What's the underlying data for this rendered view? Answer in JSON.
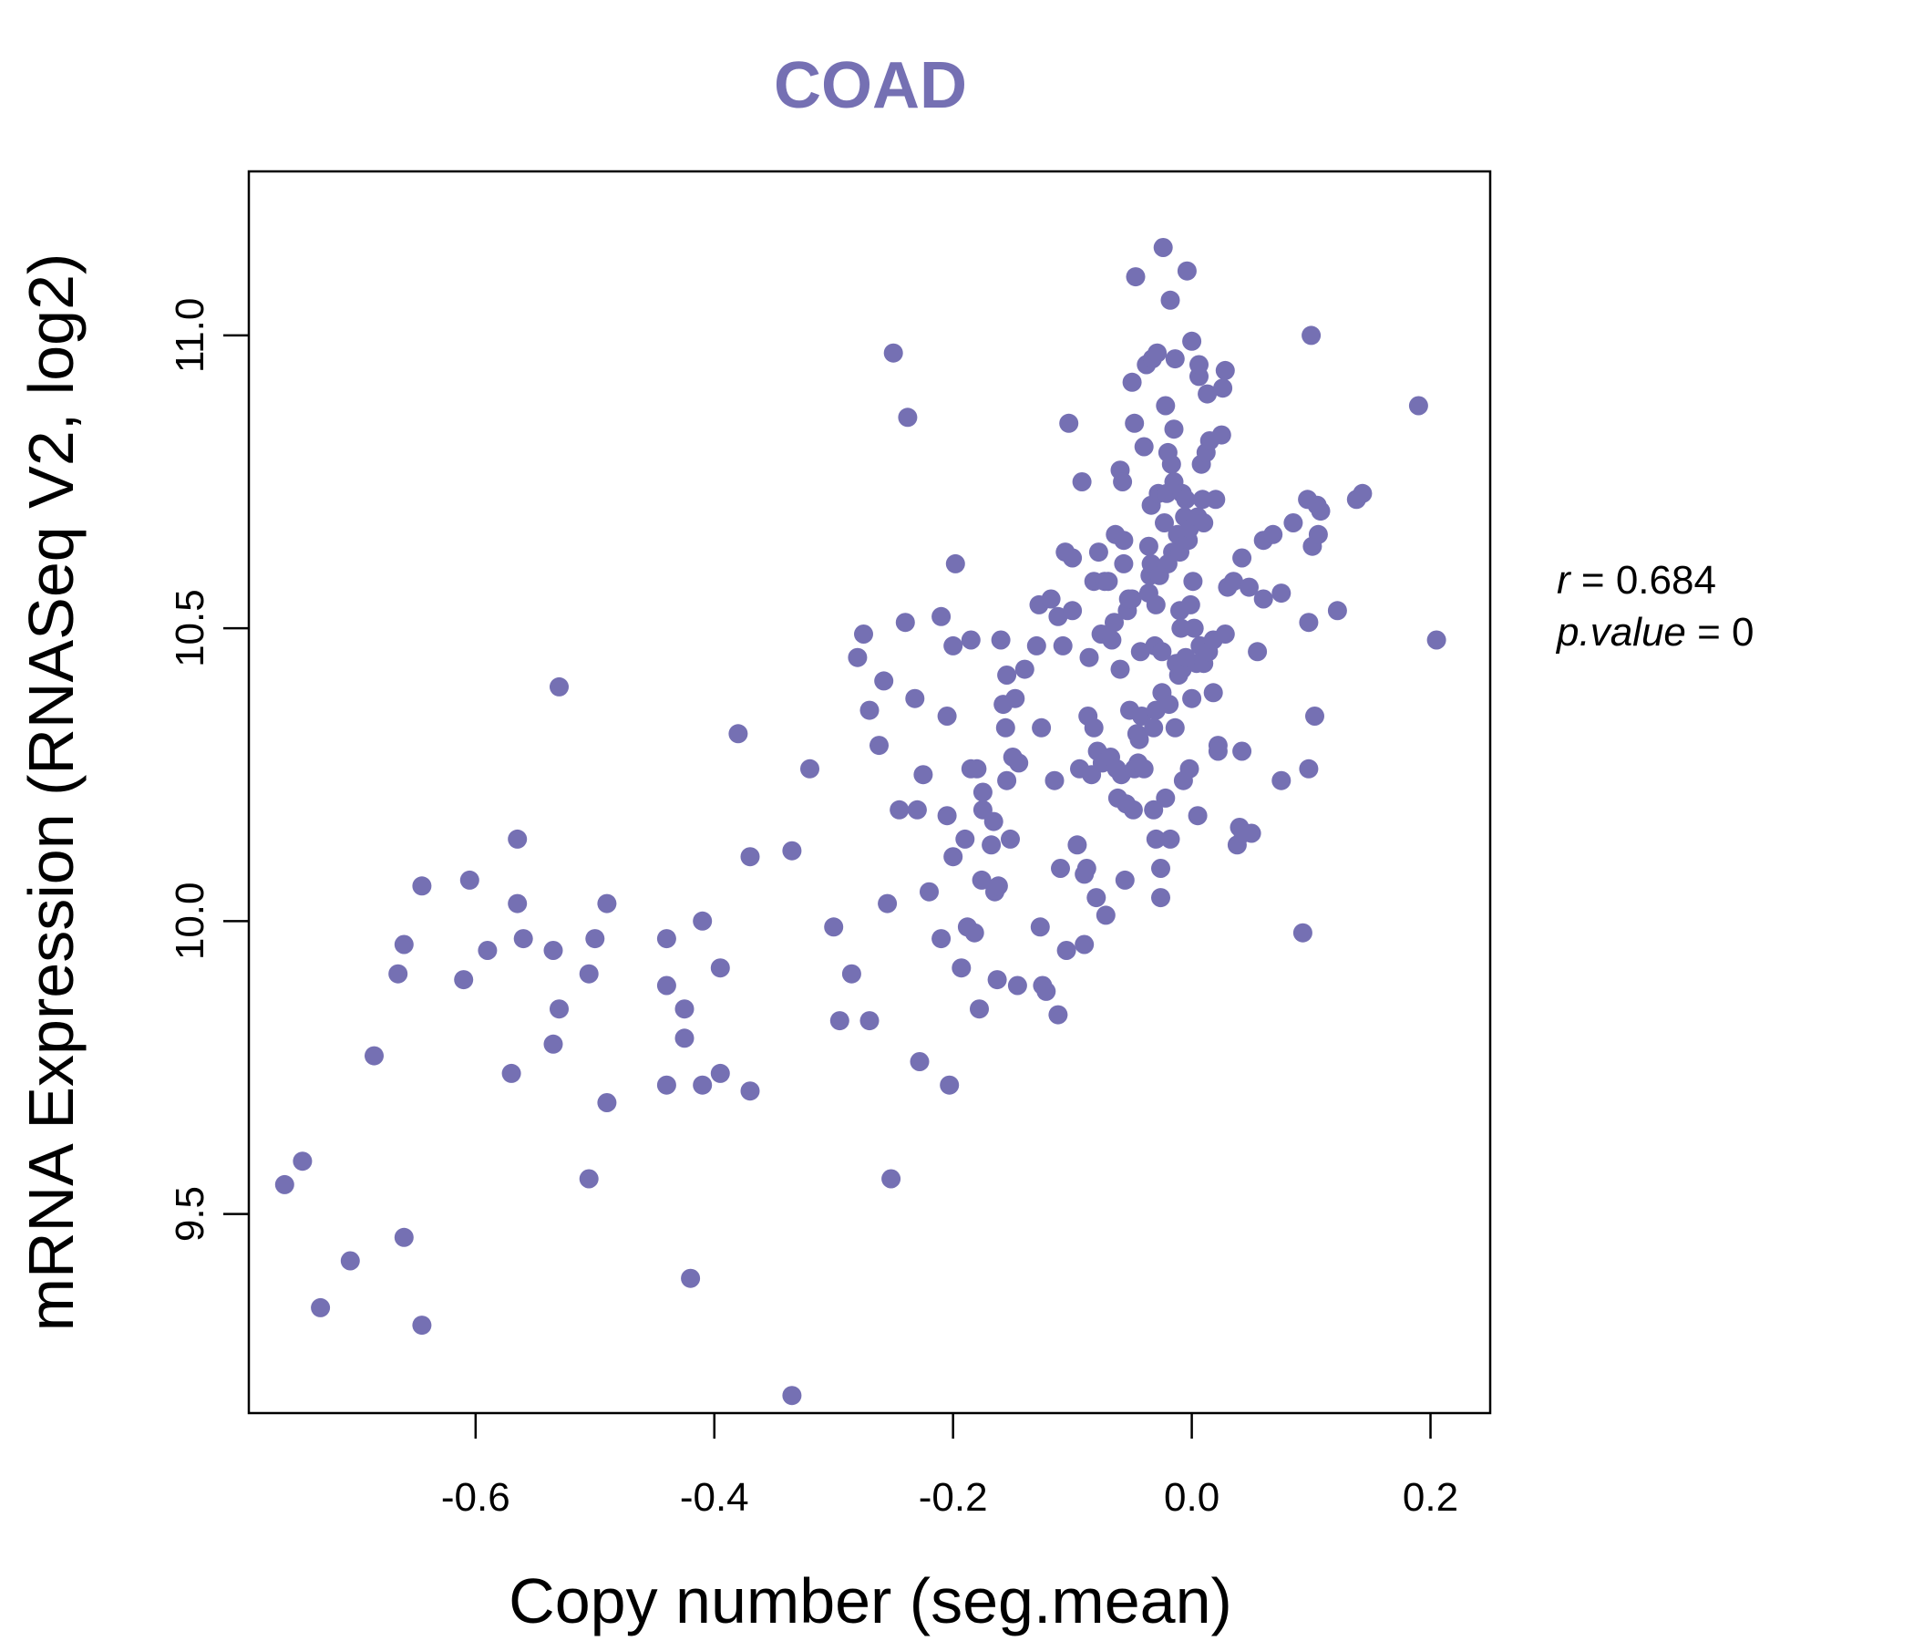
{
  "colors": {
    "accent": "#7570b3",
    "axis": "#000000"
  },
  "chart_data": {
    "type": "scatter",
    "title": "COAD",
    "xlabel": "Copy number (seg.mean)",
    "ylabel": "mRNA Expression (RNASeq V2, log2)",
    "xlim": [
      -0.79,
      0.25
    ],
    "ylim": [
      9.16,
      11.28
    ],
    "x_ticks": [
      -0.6,
      -0.4,
      -0.2,
      0.0,
      0.2
    ],
    "x_tick_labels": [
      "-0.6",
      "-0.4",
      "-0.2",
      "0.0",
      "0.2"
    ],
    "y_ticks": [
      9.5,
      10.0,
      10.5,
      11.0
    ],
    "y_tick_labels": [
      "9.5",
      "10.0",
      "10.5",
      "11.0"
    ],
    "grid": false,
    "annotation": {
      "r_symbol": "r",
      "r_value": "0.684",
      "p_symbol": "p.value",
      "p_value": "0"
    },
    "points": [
      [
        -0.76,
        9.55
      ],
      [
        -0.745,
        9.59
      ],
      [
        -0.73,
        9.34
      ],
      [
        -0.705,
        9.42
      ],
      [
        -0.685,
        9.77
      ],
      [
        -0.665,
        9.91
      ],
      [
        -0.66,
        9.96
      ],
      [
        -0.66,
        9.46
      ],
      [
        -0.645,
        10.06
      ],
      [
        -0.645,
        9.31
      ],
      [
        -0.61,
        9.9
      ],
      [
        -0.605,
        10.07
      ],
      [
        -0.59,
        9.95
      ],
      [
        -0.57,
        9.74
      ],
      [
        -0.565,
        10.03
      ],
      [
        -0.565,
        10.14
      ],
      [
        -0.56,
        9.97
      ],
      [
        -0.535,
        9.95
      ],
      [
        -0.535,
        9.79
      ],
      [
        -0.53,
        9.85
      ],
      [
        -0.53,
        10.4
      ],
      [
        -0.505,
        9.91
      ],
      [
        -0.505,
        9.56
      ],
      [
        -0.5,
        9.97
      ],
      [
        -0.49,
        10.03
      ],
      [
        -0.49,
        9.69
      ],
      [
        -0.44,
        9.89
      ],
      [
        -0.44,
        9.97
      ],
      [
        -0.44,
        9.72
      ],
      [
        -0.425,
        9.85
      ],
      [
        -0.425,
        9.8
      ],
      [
        -0.42,
        9.39
      ],
      [
        -0.41,
        10.0
      ],
      [
        -0.41,
        9.72
      ],
      [
        -0.395,
        9.92
      ],
      [
        -0.395,
        9.74
      ],
      [
        -0.38,
        10.32
      ],
      [
        -0.37,
        10.11
      ],
      [
        -0.37,
        9.71
      ],
      [
        -0.335,
        10.12
      ],
      [
        -0.335,
        9.19
      ],
      [
        -0.32,
        10.26
      ],
      [
        -0.3,
        9.99
      ],
      [
        -0.295,
        9.83
      ],
      [
        -0.285,
        9.91
      ],
      [
        -0.28,
        10.45
      ],
      [
        -0.275,
        10.49
      ],
      [
        -0.27,
        10.36
      ],
      [
        -0.27,
        9.83
      ],
      [
        -0.262,
        10.3
      ],
      [
        -0.258,
        10.41
      ],
      [
        -0.255,
        10.03
      ],
      [
        -0.252,
        9.56
      ],
      [
        -0.25,
        10.97
      ],
      [
        -0.245,
        10.19
      ],
      [
        -0.24,
        10.51
      ],
      [
        -0.238,
        10.86
      ],
      [
        -0.232,
        10.38
      ],
      [
        -0.23,
        10.19
      ],
      [
        -0.228,
        9.76
      ],
      [
        -0.225,
        10.25
      ],
      [
        -0.22,
        10.05
      ],
      [
        -0.21,
        9.97
      ],
      [
        -0.21,
        10.52
      ],
      [
        -0.205,
        10.18
      ],
      [
        -0.205,
        10.35
      ],
      [
        -0.203,
        9.72
      ],
      [
        -0.2,
        10.47
      ],
      [
        -0.2,
        10.11
      ],
      [
        -0.198,
        10.61
      ],
      [
        -0.193,
        9.92
      ],
      [
        -0.19,
        10.14
      ],
      [
        -0.188,
        9.99
      ],
      [
        -0.185,
        10.48
      ],
      [
        -0.185,
        10.26
      ],
      [
        -0.182,
        9.98
      ],
      [
        -0.18,
        10.26
      ],
      [
        -0.178,
        9.85
      ],
      [
        -0.176,
        10.07
      ],
      [
        -0.175,
        10.19
      ],
      [
        -0.175,
        10.22
      ],
      [
        -0.168,
        10.13
      ],
      [
        -0.166,
        10.17
      ],
      [
        -0.165,
        10.05
      ],
      [
        -0.163,
        9.9
      ],
      [
        -0.162,
        10.06
      ],
      [
        -0.16,
        10.48
      ],
      [
        -0.158,
        10.37
      ],
      [
        -0.156,
        10.33
      ],
      [
        -0.155,
        10.24
      ],
      [
        -0.155,
        10.42
      ],
      [
        -0.152,
        10.14
      ],
      [
        -0.15,
        10.28
      ],
      [
        -0.148,
        10.38
      ],
      [
        -0.146,
        9.89
      ],
      [
        -0.145,
        10.27
      ],
      [
        -0.14,
        10.43
      ],
      [
        -0.13,
        10.47
      ],
      [
        -0.128,
        10.54
      ],
      [
        -0.127,
        9.99
      ],
      [
        -0.126,
        10.33
      ],
      [
        -0.125,
        9.89
      ],
      [
        -0.122,
        9.88
      ],
      [
        -0.118,
        10.55
      ],
      [
        -0.115,
        10.24
      ],
      [
        -0.112,
        10.52
      ],
      [
        -0.112,
        9.84
      ],
      [
        -0.11,
        10.09
      ],
      [
        -0.108,
        10.47
      ],
      [
        -0.106,
        10.63
      ],
      [
        -0.105,
        9.95
      ],
      [
        -0.103,
        10.85
      ],
      [
        -0.1,
        10.62
      ],
      [
        -0.1,
        10.53
      ],
      [
        -0.096,
        10.13
      ],
      [
        -0.094,
        10.26
      ],
      [
        -0.092,
        10.75
      ],
      [
        -0.09,
        10.08
      ],
      [
        -0.09,
        9.96
      ],
      [
        -0.088,
        10.09
      ],
      [
        -0.087,
        10.35
      ],
      [
        -0.086,
        10.45
      ],
      [
        -0.084,
        10.25
      ],
      [
        -0.082,
        10.58
      ],
      [
        -0.082,
        10.33
      ],
      [
        -0.08,
        10.04
      ],
      [
        -0.079,
        10.29
      ],
      [
        -0.078,
        10.63
      ],
      [
        -0.076,
        10.49
      ],
      [
        -0.075,
        10.27
      ],
      [
        -0.073,
        10.58
      ],
      [
        -0.072,
        10.01
      ],
      [
        -0.07,
        10.58
      ],
      [
        -0.068,
        10.28
      ],
      [
        -0.067,
        10.48
      ],
      [
        -0.065,
        10.51
      ],
      [
        -0.064,
        10.66
      ],
      [
        -0.063,
        10.26
      ],
      [
        -0.062,
        10.21
      ],
      [
        -0.06,
        10.43
      ],
      [
        -0.06,
        10.77
      ],
      [
        -0.059,
        10.25
      ],
      [
        -0.058,
        10.75
      ],
      [
        -0.057,
        10.61
      ],
      [
        -0.057,
        10.65
      ],
      [
        -0.056,
        10.07
      ],
      [
        -0.055,
        10.2
      ],
      [
        -0.054,
        10.53
      ],
      [
        -0.053,
        10.55
      ],
      [
        -0.052,
        10.36
      ],
      [
        -0.05,
        10.55
      ],
      [
        -0.05,
        10.92
      ],
      [
        -0.049,
        10.19
      ],
      [
        -0.048,
        10.26
      ],
      [
        -0.048,
        10.85
      ],
      [
        -0.047,
        11.1
      ],
      [
        -0.046,
        10.32
      ],
      [
        -0.045,
        10.27
      ],
      [
        -0.044,
        10.31
      ],
      [
        -0.043,
        10.46
      ],
      [
        -0.042,
        10.35
      ],
      [
        -0.04,
        10.26
      ],
      [
        -0.04,
        10.81
      ],
      [
        -0.038,
        10.95
      ],
      [
        -0.036,
        10.64
      ],
      [
        -0.036,
        10.56
      ],
      [
        -0.035,
        10.59
      ],
      [
        -0.034,
        10.61
      ],
      [
        -0.034,
        10.71
      ],
      [
        -0.033,
        10.96
      ],
      [
        -0.032,
        10.19
      ],
      [
        -0.032,
        10.33
      ],
      [
        -0.031,
        10.47
      ],
      [
        -0.03,
        10.14
      ],
      [
        -0.03,
        10.54
      ],
      [
        -0.03,
        10.36
      ],
      [
        -0.029,
        10.97
      ],
      [
        -0.028,
        10.6
      ],
      [
        -0.028,
        10.73
      ],
      [
        -0.027,
        10.59
      ],
      [
        -0.026,
        10.09
      ],
      [
        -0.026,
        10.04
      ],
      [
        -0.025,
        10.39
      ],
      [
        -0.025,
        10.46
      ],
      [
        -0.024,
        11.15
      ],
      [
        -0.023,
        10.68
      ],
      [
        -0.022,
        10.88
      ],
      [
        -0.022,
        10.21
      ],
      [
        -0.021,
        10.73
      ],
      [
        -0.02,
        10.8
      ],
      [
        -0.02,
        10.61
      ],
      [
        -0.019,
        10.37
      ],
      [
        -0.018,
        11.06
      ],
      [
        -0.018,
        10.14
      ],
      [
        -0.017,
        10.78
      ],
      [
        -0.016,
        10.63
      ],
      [
        -0.015,
        10.75
      ],
      [
        -0.015,
        10.84
      ],
      [
        -0.014,
        10.96
      ],
      [
        -0.014,
        10.33
      ],
      [
        -0.013,
        10.44
      ],
      [
        -0.012,
        10.66
      ],
      [
        -0.011,
        10.42
      ],
      [
        -0.01,
        10.63
      ],
      [
        -0.01,
        10.53
      ],
      [
        -0.009,
        10.5
      ],
      [
        -0.008,
        10.43
      ],
      [
        -0.008,
        10.73
      ],
      [
        -0.007,
        10.24
      ],
      [
        -0.006,
        10.69
      ],
      [
        -0.005,
        10.45
      ],
      [
        -0.005,
        10.72
      ],
      [
        -0.004,
        11.11
      ],
      [
        -0.003,
        10.65
      ],
      [
        -0.002,
        10.26
      ],
      [
        -0.002,
        10.67
      ],
      [
        -0.001,
        10.54
      ],
      [
        0.0,
        10.99
      ],
      [
        0.0,
        10.38
      ],
      [
        0.001,
        10.58
      ],
      [
        0.002,
        10.5
      ],
      [
        0.004,
        10.44
      ],
      [
        0.005,
        10.69
      ],
      [
        0.005,
        10.18
      ],
      [
        0.006,
        10.93
      ],
      [
        0.006,
        10.95
      ],
      [
        0.007,
        10.47
      ],
      [
        0.008,
        10.78
      ],
      [
        0.009,
        10.72
      ],
      [
        0.01,
        10.68
      ],
      [
        0.01,
        10.44
      ],
      [
        0.012,
        10.8
      ],
      [
        0.013,
        10.9
      ],
      [
        0.014,
        10.46
      ],
      [
        0.015,
        10.82
      ],
      [
        0.018,
        10.39
      ],
      [
        0.018,
        10.48
      ],
      [
        0.02,
        10.72
      ],
      [
        0.022,
        10.3
      ],
      [
        0.022,
        10.29
      ],
      [
        0.025,
        10.83
      ],
      [
        0.026,
        10.91
      ],
      [
        0.028,
        10.49
      ],
      [
        0.028,
        10.94
      ],
      [
        0.03,
        10.57
      ],
      [
        0.035,
        10.58
      ],
      [
        0.038,
        10.13
      ],
      [
        0.04,
        10.16
      ],
      [
        0.042,
        10.29
      ],
      [
        0.042,
        10.62
      ],
      [
        0.043,
        10.15
      ],
      [
        0.048,
        10.57
      ],
      [
        0.05,
        10.15
      ],
      [
        0.055,
        10.46
      ],
      [
        0.06,
        10.55
      ],
      [
        0.06,
        10.65
      ],
      [
        0.068,
        10.66
      ],
      [
        0.075,
        10.24
      ],
      [
        0.075,
        10.56
      ],
      [
        0.085,
        10.68
      ],
      [
        0.093,
        9.98
      ],
      [
        0.097,
        10.72
      ],
      [
        0.098,
        10.51
      ],
      [
        0.098,
        10.26
      ],
      [
        0.1,
        11.0
      ],
      [
        0.101,
        10.64
      ],
      [
        0.103,
        10.35
      ],
      [
        0.105,
        10.71
      ],
      [
        0.106,
        10.66
      ],
      [
        0.108,
        10.7
      ],
      [
        0.122,
        10.53
      ],
      [
        0.138,
        10.72
      ],
      [
        0.143,
        10.73
      ],
      [
        0.19,
        10.88
      ],
      [
        0.205,
        10.48
      ]
    ]
  }
}
